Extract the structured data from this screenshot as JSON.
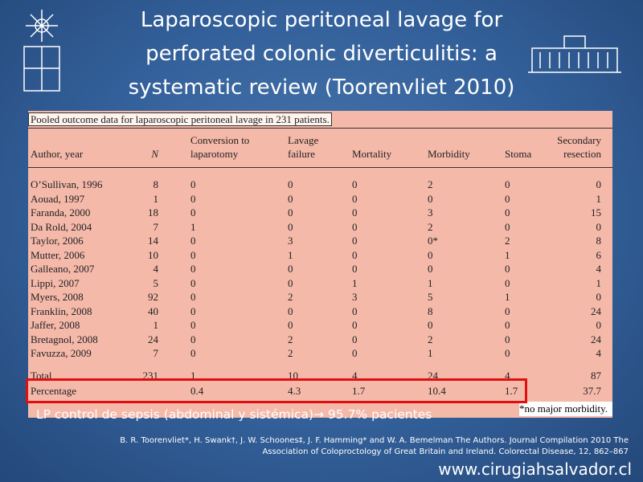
{
  "title": [
    "Laparoscopic peritoneal lavage for",
    "perforated colonic diverticulitis: a",
    "systematic review (Toorenvliet 2010)"
  ],
  "table": {
    "caption": "Pooled outcome data for laparoscopic peritoneal lavage in 231 patients.",
    "headers": [
      [
        "Author, year"
      ],
      [
        "N"
      ],
      [
        "Conversion to",
        "laparotomy"
      ],
      [
        "Lavage",
        "failure"
      ],
      [
        "Mortality"
      ],
      [
        "Morbidity"
      ],
      [
        "Stoma"
      ],
      [
        "Secondary",
        "resection"
      ]
    ],
    "rows": [
      [
        "O’Sullivan, 1996",
        "8",
        "0",
        "0",
        "0",
        "2",
        "0",
        "0"
      ],
      [
        "Aouad, 1997",
        "1",
        "0",
        "0",
        "0",
        "0",
        "0",
        "1"
      ],
      [
        "Faranda, 2000",
        "18",
        "0",
        "0",
        "0",
        "3",
        "0",
        "15"
      ],
      [
        "Da Rold, 2004",
        "7",
        "1",
        "0",
        "0",
        "2",
        "0",
        "0"
      ],
      [
        "Taylor, 2006",
        "14",
        "0",
        "3",
        "0",
        "0*",
        "2",
        "8"
      ],
      [
        "Mutter, 2006",
        "10",
        "0",
        "1",
        "0",
        "0",
        "1",
        "6"
      ],
      [
        "Galleano, 2007",
        "4",
        "0",
        "0",
        "0",
        "0",
        "0",
        "4"
      ],
      [
        "Lippi, 2007",
        "5",
        "0",
        "0",
        "1",
        "1",
        "0",
        "1"
      ],
      [
        "Myers, 2008",
        "92",
        "0",
        "2",
        "3",
        "5",
        "1",
        "0"
      ],
      [
        "Franklin, 2008",
        "40",
        "0",
        "0",
        "0",
        "8",
        "0",
        "24"
      ],
      [
        "Jaffer, 2008",
        "1",
        "0",
        "0",
        "0",
        "0",
        "0",
        "0"
      ],
      [
        "Bretagnol, 2008",
        "24",
        "0",
        "2",
        "0",
        "2",
        "0",
        "24"
      ],
      [
        "Favuzza, 2009",
        "7",
        "0",
        "2",
        "0",
        "1",
        "0",
        "4"
      ]
    ],
    "total": [
      "Total",
      "231",
      "1",
      "10",
      "4",
      "24",
      "4",
      "87"
    ],
    "percentage": [
      "Percentage",
      null,
      "0.4",
      "4.3",
      "1.7",
      "10.4",
      "1.7",
      "37.7"
    ],
    "footnote": "*no major morbidity."
  },
  "summary": "LP control de sepsis (abdominal y sistémica)→ 95.7% pacientes",
  "citation": [
    "B. R. Toorenvliet*, H. Swank†, J. W. Schoones‡, J. F. Hamming* and W. A. Bemelman The Authors. Journal Compilation  2010 The",
    "Association of Coloproctology of Great Britain and Ireland. Colorectal Disease, 12, 862–867"
  ],
  "website": "www.cirugiahsalvador.cl"
}
